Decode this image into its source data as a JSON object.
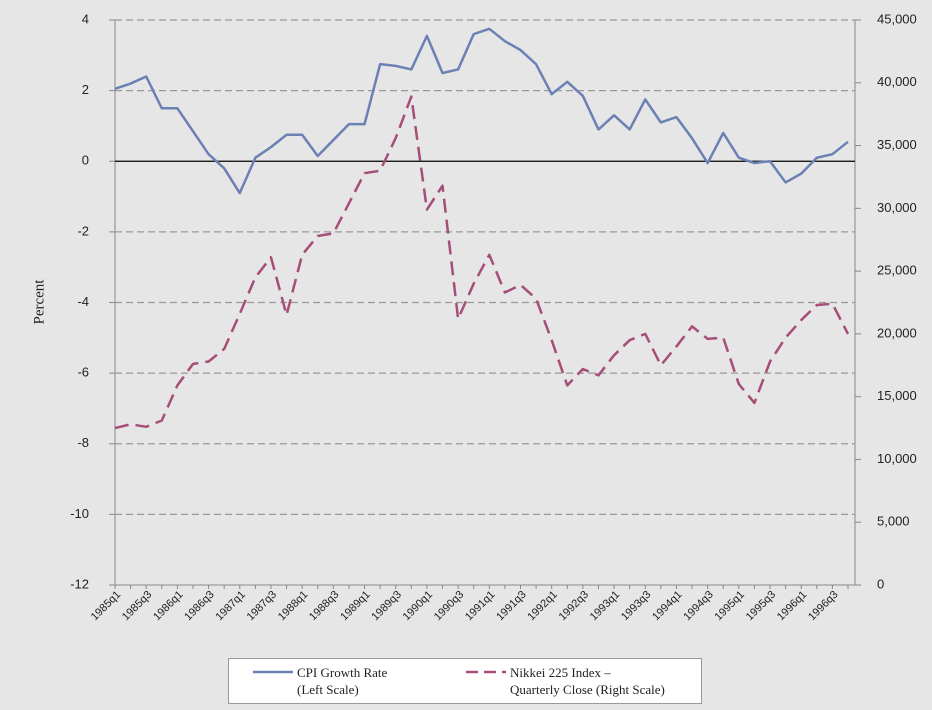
{
  "chart_data": {
    "type": "line",
    "y_label": "Percent",
    "categories": [
      "1985q1",
      null,
      "1985q3",
      null,
      "1986q1",
      null,
      "1986q3",
      null,
      "1987q1",
      null,
      "1987q3",
      null,
      "1988q1",
      null,
      "1988q3",
      null,
      "1989q1",
      null,
      "1989q3",
      null,
      "1990q1",
      null,
      "1990q3",
      null,
      "1991q1",
      null,
      "1991q3",
      null,
      "1992q1",
      null,
      "1992q3",
      null,
      "1993q1",
      null,
      "1993q3",
      null,
      "1994q1",
      null,
      "1994q3",
      null,
      "1995q1",
      null,
      "1995q3",
      null,
      "1996q1",
      null,
      "1996q3",
      null
    ],
    "series": [
      {
        "name": "CPI Growth Rate\n(Left Scale)",
        "color": "#6b80b3",
        "dash": false,
        "axis": "y",
        "values": [
          2.05,
          2.2,
          2.4,
          1.5,
          1.5,
          0.85,
          0.2,
          -0.2,
          -0.9,
          0.1,
          0.4,
          0.75,
          0.75,
          0.15,
          0.6,
          1.05,
          1.05,
          2.75,
          2.7,
          2.6,
          3.55,
          2.5,
          2.6,
          3.6,
          3.75,
          3.4,
          3.15,
          2.75,
          1.9,
          2.25,
          1.85,
          0.9,
          1.3,
          0.9,
          1.75,
          1.1,
          1.25,
          0.65,
          -0.05,
          0.8,
          0.1,
          -0.05,
          0,
          -0.6,
          -0.35,
          0.1,
          0.2,
          0.55
        ]
      },
      {
        "name": "Nikkei 225 Index –\nQuarterly Close (Right Scale)",
        "color": "#a64d79",
        "dash": true,
        "axis": "y2",
        "values": [
          12500,
          12800,
          12600,
          13100,
          15900,
          17600,
          17800,
          18800,
          21600,
          24500,
          26100,
          21500,
          26300,
          27800,
          28000,
          30400,
          32800,
          33000,
          35600,
          38900,
          29900,
          31800,
          21200,
          24000,
          26300,
          23300,
          23900,
          22800,
          19500,
          15900,
          17200,
          16700,
          18300,
          19500,
          20000,
          17500,
          19000,
          20600,
          19600,
          19700,
          16000,
          14500,
          17800,
          19700,
          21100,
          22300,
          22400,
          20000
        ]
      }
    ],
    "ylim": [
      -12,
      4
    ],
    "yticks": [
      -12,
      -10,
      -8,
      -6,
      -4,
      -2,
      0,
      2,
      4
    ],
    "y2lim": [
      0,
      45000
    ],
    "y2ticks": [
      0,
      {
        "value": 5000,
        "label": "5,000"
      },
      {
        "value": 10000,
        "label": "10,000"
      },
      {
        "value": 15000,
        "label": "15,000"
      },
      {
        "value": 20000,
        "label": "20,000"
      },
      {
        "value": 25000,
        "label": "25,000"
      },
      {
        "value": 30000,
        "label": "30,000"
      },
      {
        "value": 35000,
        "label": "35,000"
      },
      {
        "value": 40000,
        "label": "40,000"
      },
      {
        "value": 45000,
        "label": "45,000"
      }
    ],
    "grid": true
  }
}
